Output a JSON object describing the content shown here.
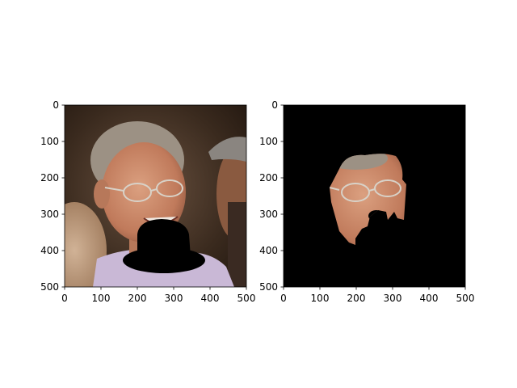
{
  "chart_data": [
    {
      "type": "image",
      "panel": "left",
      "content": "photo of a smiling man with glasses; a black bowler-hat shape occludes the lower face",
      "xlim": [
        0,
        500
      ],
      "ylim": [
        500,
        0
      ],
      "xticks": [
        0,
        100,
        200,
        300,
        400,
        500
      ],
      "yticks": [
        0,
        100,
        200,
        300,
        400,
        500
      ],
      "xtick_labels": [
        "0",
        "100",
        "200",
        "300",
        "400",
        "500"
      ],
      "ytick_labels": [
        "0",
        "100",
        "200",
        "300",
        "400",
        "500"
      ],
      "occluder": {
        "shape": "bowler-hat",
        "color": "#000000"
      }
    },
    {
      "type": "image",
      "panel": "right",
      "content": "segmented face region on a black background, occluded area removed",
      "xlim": [
        0,
        500
      ],
      "ylim": [
        500,
        0
      ],
      "xticks": [
        0,
        100,
        200,
        300,
        400,
        500
      ],
      "yticks": [
        0,
        100,
        200,
        300,
        400,
        500
      ],
      "xtick_labels": [
        "0",
        "100",
        "200",
        "300",
        "400",
        "500"
      ],
      "ytick_labels": [
        "0",
        "100",
        "200",
        "300",
        "400",
        "500"
      ],
      "background": "#000000"
    }
  ],
  "colors": {
    "photo_bg_dark": "#2a1d14",
    "photo_bg_mid": "#5a4535",
    "skin": "#c98a6a",
    "skin_shadow": "#9a5e45",
    "hair": "#9c9184",
    "shirt": "#c9b8d6",
    "mask": "#000000"
  }
}
